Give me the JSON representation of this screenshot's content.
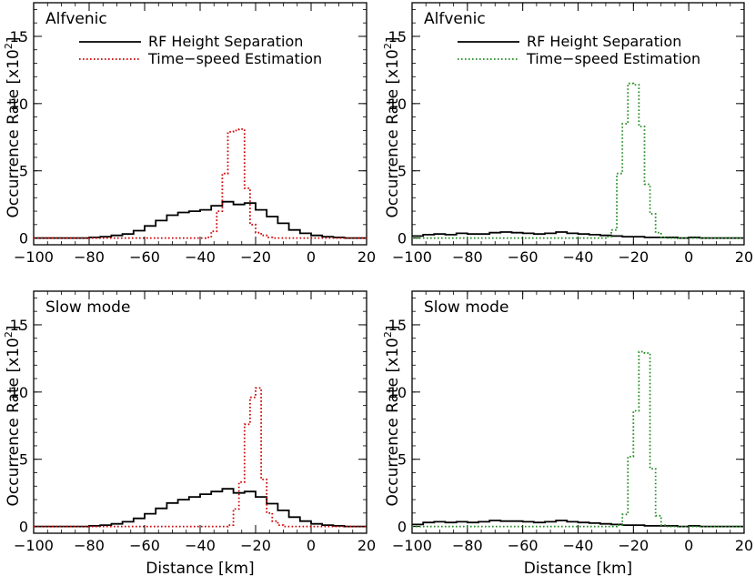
{
  "chart_data": [
    {
      "type": "line",
      "annotation": "Alfvenic",
      "ylabel_prefix": "Occurrence Rate [x10",
      "ylabel_exponent": "2",
      "ylabel_suffix": "]",
      "xlabel": "",
      "xlim": [
        -100,
        20
      ],
      "ylim": [
        -0.5,
        17.5
      ],
      "xticks": [
        "-100",
        "-80",
        "-60",
        "-40",
        "-20",
        "0",
        "20"
      ],
      "yticks": [
        "0",
        "5",
        "10",
        "15"
      ],
      "legend_position": "top-left",
      "series": [
        {
          "name": "RF Height Separation",
          "color": "#000000",
          "style": "solid",
          "x": [
            -100,
            -96,
            -92,
            -88,
            -84,
            -80,
            -76,
            -72,
            -68,
            -64,
            -60,
            -56,
            -52,
            -48,
            -44,
            -40,
            -36,
            -32,
            -28,
            -24,
            -20,
            -16,
            -12,
            -8,
            -4,
            0,
            4,
            8,
            12,
            16,
            20
          ],
          "y": [
            0,
            0,
            0,
            0,
            0,
            0.05,
            0.1,
            0.2,
            0.3,
            0.55,
            0.9,
            1.3,
            1.7,
            1.9,
            2.0,
            2.1,
            2.4,
            2.7,
            2.5,
            2.6,
            2.1,
            1.6,
            1.1,
            0.6,
            0.35,
            0.2,
            0.1,
            0.05,
            0,
            0,
            0
          ]
        },
        {
          "name": "Time−speed Estimation",
          "color": "#cc0000",
          "style": "dotted",
          "x": [
            -100,
            -96,
            -92,
            -88,
            -84,
            -80,
            -76,
            -72,
            -68,
            -64,
            -60,
            -56,
            -52,
            -48,
            -44,
            -40,
            -38,
            -36,
            -34,
            -32,
            -30,
            -28,
            -26,
            -24,
            -22,
            -20,
            -18,
            -16,
            -14,
            -12,
            -10,
            -8,
            -4,
            0,
            4,
            8,
            12,
            16,
            20
          ],
          "y": [
            0,
            0,
            0,
            0,
            0,
            0,
            0,
            0,
            0,
            0,
            0,
            0,
            0,
            0,
            0,
            0,
            0.05,
            0.5,
            2.0,
            4.8,
            7.9,
            8.0,
            8.1,
            3.7,
            1.0,
            0.4,
            0.2,
            0.05,
            0,
            0,
            0,
            0,
            0,
            0,
            0,
            0,
            0,
            0,
            0
          ]
        }
      ]
    },
    {
      "type": "line",
      "annotation": "Alfvenic",
      "ylabel_prefix": "Occurrence Rate [x10",
      "ylabel_exponent": "2",
      "ylabel_suffix": "]",
      "xlabel": "",
      "xlim": [
        -100,
        20
      ],
      "ylim": [
        -0.5,
        17.5
      ],
      "xticks": [
        "-100",
        "-80",
        "-60",
        "-40",
        "-20",
        "0",
        "20"
      ],
      "yticks": [
        "0",
        "5",
        "10",
        "15"
      ],
      "legend_position": "top-left",
      "series": [
        {
          "name": "RF Height Separation",
          "color": "#000000",
          "style": "solid",
          "x": [
            -100,
            -96,
            -92,
            -88,
            -84,
            -80,
            -76,
            -72,
            -68,
            -64,
            -60,
            -56,
            -52,
            -48,
            -44,
            -40,
            -36,
            -32,
            -28,
            -24,
            -20,
            -16,
            -12,
            -8,
            -4,
            0,
            4,
            8,
            12,
            16,
            20
          ],
          "y": [
            0.15,
            0.25,
            0.3,
            0.25,
            0.35,
            0.3,
            0.3,
            0.4,
            0.45,
            0.4,
            0.35,
            0.3,
            0.35,
            0.45,
            0.35,
            0.3,
            0.25,
            0.2,
            0.15,
            0.1,
            0.1,
            0.05,
            0.05,
            0.05,
            0,
            0.05,
            0,
            0,
            0,
            0,
            0
          ]
        },
        {
          "name": "Time−speed Estimation",
          "color": "#228b22",
          "style": "dotted",
          "x": [
            -100,
            -96,
            -92,
            -88,
            -84,
            -80,
            -76,
            -72,
            -68,
            -64,
            -60,
            -56,
            -52,
            -48,
            -44,
            -40,
            -36,
            -32,
            -30,
            -28,
            -26,
            -24,
            -22,
            -20,
            -18,
            -16,
            -14,
            -12,
            -10,
            -8,
            -4,
            0,
            4,
            8,
            12,
            16,
            20
          ],
          "y": [
            0,
            0,
            0,
            0,
            0,
            0,
            0,
            0,
            0,
            0,
            0,
            0,
            0,
            0,
            0,
            0,
            0,
            0,
            0.1,
            0.6,
            4.8,
            8.5,
            11.5,
            11.4,
            8.3,
            4.0,
            1.8,
            0.4,
            0.05,
            0,
            0,
            0,
            0,
            0,
            0,
            0,
            0
          ]
        }
      ]
    },
    {
      "type": "line",
      "annotation": "Slow mode",
      "ylabel_prefix": "Occurrence Rate [x10",
      "ylabel_exponent": "2",
      "ylabel_suffix": "]",
      "xlabel": "Distance [km]",
      "xlim": [
        -100,
        20
      ],
      "ylim": [
        -0.5,
        17.5
      ],
      "xticks": [
        "-100",
        "-80",
        "-60",
        "-40",
        "-20",
        "0",
        "20"
      ],
      "yticks": [
        "0",
        "5",
        "10",
        "15"
      ],
      "series": [
        {
          "name": "RF Height Separation",
          "color": "#000000",
          "style": "solid",
          "x": [
            -100,
            -96,
            -92,
            -88,
            -84,
            -80,
            -76,
            -72,
            -68,
            -64,
            -60,
            -56,
            -52,
            -48,
            -44,
            -40,
            -36,
            -32,
            -28,
            -24,
            -20,
            -16,
            -12,
            -8,
            -4,
            0,
            4,
            8,
            12,
            16,
            20
          ],
          "y": [
            0,
            0,
            0,
            0,
            0,
            0.05,
            0.1,
            0.2,
            0.35,
            0.6,
            0.95,
            1.35,
            1.75,
            2.0,
            2.2,
            2.4,
            2.6,
            2.8,
            2.5,
            2.6,
            2.2,
            1.7,
            1.2,
            0.7,
            0.4,
            0.2,
            0.1,
            0.05,
            0,
            0,
            0
          ]
        },
        {
          "name": "Time−speed Estimation",
          "color": "#cc0000",
          "style": "dotted",
          "x": [
            -100,
            -96,
            -92,
            -88,
            -84,
            -80,
            -76,
            -72,
            -68,
            -64,
            -60,
            -56,
            -52,
            -48,
            -44,
            -40,
            -36,
            -32,
            -30,
            -28,
            -26,
            -24,
            -22,
            -20,
            -18,
            -16,
            -14,
            -12,
            -10,
            -8,
            -4,
            0,
            4,
            8,
            12,
            16,
            20
          ],
          "y": [
            0,
            0,
            0,
            0,
            0,
            0,
            0,
            0,
            0,
            0,
            0,
            0,
            0,
            0,
            0,
            0,
            0,
            0,
            0.1,
            1.3,
            3.3,
            7.6,
            9.6,
            10.3,
            3.5,
            1.0,
            0.4,
            0.1,
            0,
            0,
            0,
            0,
            0,
            0,
            0,
            0,
            0
          ]
        }
      ]
    },
    {
      "type": "line",
      "annotation": "Slow mode",
      "ylabel_prefix": "Occurrence Rate [x10",
      "ylabel_exponent": "2",
      "ylabel_suffix": "]",
      "xlabel": "Distance [km]",
      "xlim": [
        -100,
        20
      ],
      "ylim": [
        -0.5,
        17.5
      ],
      "xticks": [
        "-100",
        "-80",
        "-60",
        "-40",
        "-20",
        "0",
        "20"
      ],
      "yticks": [
        "0",
        "5",
        "10",
        "15"
      ],
      "series": [
        {
          "name": "RF Height Separation",
          "color": "#000000",
          "style": "solid",
          "x": [
            -100,
            -96,
            -92,
            -88,
            -84,
            -80,
            -76,
            -72,
            -68,
            -64,
            -60,
            -56,
            -52,
            -48,
            -44,
            -40,
            -36,
            -32,
            -28,
            -24,
            -20,
            -16,
            -12,
            -8,
            -4,
            0,
            4,
            8,
            12,
            16,
            20
          ],
          "y": [
            0.15,
            0.3,
            0.35,
            0.3,
            0.35,
            0.3,
            0.35,
            0.45,
            0.4,
            0.4,
            0.35,
            0.3,
            0.35,
            0.45,
            0.35,
            0.3,
            0.25,
            0.2,
            0.15,
            0.1,
            0.1,
            0.05,
            0.05,
            0.05,
            0,
            0.05,
            0,
            0,
            0,
            0,
            0
          ]
        },
        {
          "name": "Time−speed Estimation",
          "color": "#228b22",
          "style": "dotted",
          "x": [
            -100,
            -96,
            -92,
            -88,
            -84,
            -80,
            -76,
            -72,
            -68,
            -64,
            -60,
            -56,
            -52,
            -48,
            -44,
            -40,
            -36,
            -32,
            -28,
            -26,
            -24,
            -22,
            -20,
            -18,
            -16,
            -14,
            -12,
            -10,
            -8,
            -4,
            0,
            4,
            8,
            12,
            16,
            20
          ],
          "y": [
            0,
            0,
            0,
            0,
            0,
            0,
            0,
            0,
            0,
            0,
            0,
            0,
            0,
            0,
            0,
            0,
            0,
            0,
            0,
            0.1,
            0.9,
            5.2,
            8.6,
            13.0,
            12.9,
            4.3,
            0.8,
            0.1,
            0,
            0,
            0,
            0,
            0,
            0,
            0,
            0
          ]
        }
      ]
    }
  ]
}
